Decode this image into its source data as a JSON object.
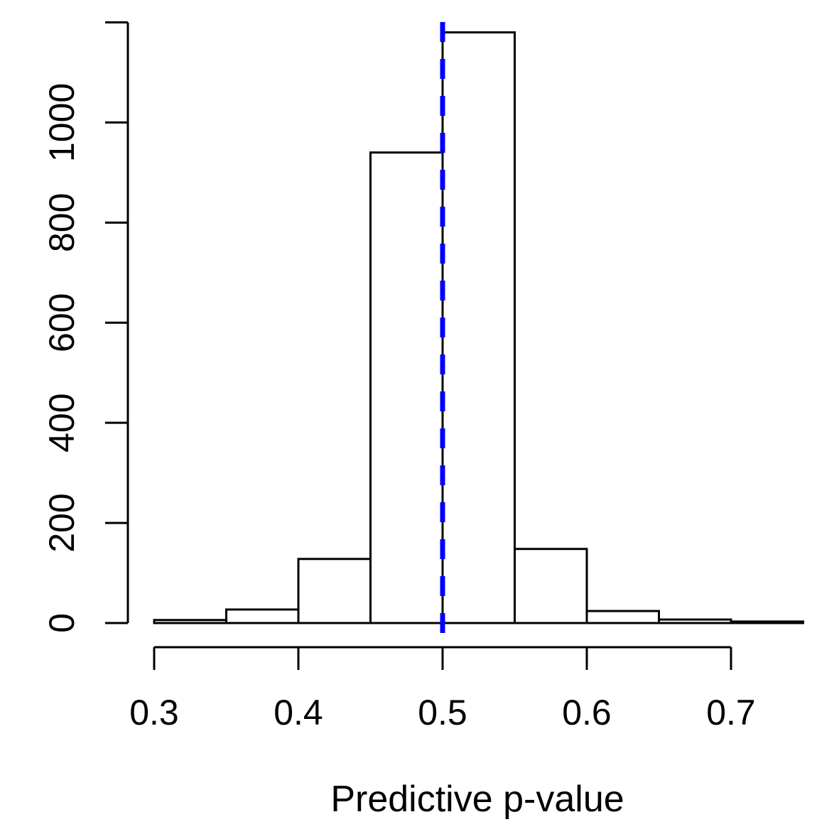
{
  "figure": {
    "background": "#FFFFFF"
  },
  "chart_data": {
    "type": "bar",
    "variant": "histogram",
    "title": "",
    "xlabel": "Predictive p-value",
    "ylabel": "",
    "breaks": [
      0.3,
      0.35,
      0.4,
      0.45,
      0.5,
      0.55,
      0.6,
      0.65,
      0.7,
      0.75
    ],
    "counts": [
      6,
      27,
      128,
      940,
      1180,
      148,
      24,
      7,
      3
    ],
    "x_ticks": [
      {
        "value": 0.3,
        "label": "0.3"
      },
      {
        "value": 0.4,
        "label": "0.4"
      },
      {
        "value": 0.5,
        "label": "0.5"
      },
      {
        "value": 0.6,
        "label": "0.6"
      },
      {
        "value": 0.7,
        "label": "0.7"
      }
    ],
    "y_ticks": [
      {
        "value": 0,
        "label": "0"
      },
      {
        "value": 200,
        "label": "200"
      },
      {
        "value": 400,
        "label": "400"
      },
      {
        "value": 600,
        "label": "600"
      },
      {
        "value": 800,
        "label": "800"
      },
      {
        "value": 1000,
        "label": "1000"
      },
      {
        "value": 1200,
        "label": ""
      }
    ],
    "xlim": [
      0.3,
      0.75
    ],
    "ylim": [
      0,
      1200
    ],
    "grid": false,
    "legend": null,
    "bar_fill": "#FFFFFF",
    "bar_stroke": "#000000",
    "axis_color": "#000000",
    "reference_line": {
      "orientation": "vertical",
      "x": 0.5,
      "color": "#0000FF",
      "style": "dashed"
    }
  }
}
